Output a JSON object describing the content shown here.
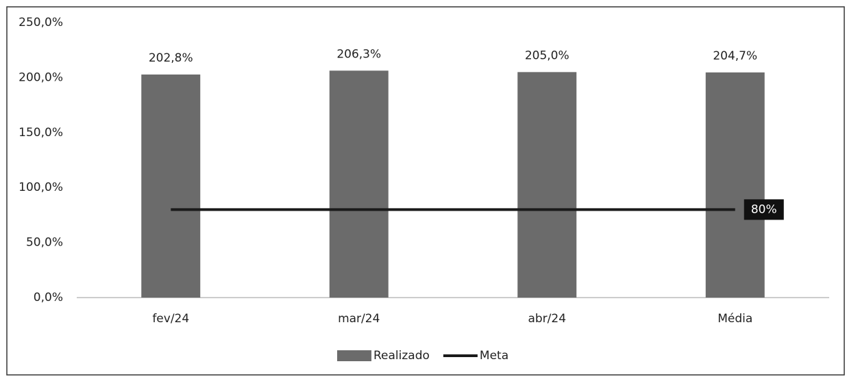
{
  "chart_data": {
    "type": "bar",
    "categories": [
      "fev/24",
      "mar/24",
      "abr/24",
      "Média"
    ],
    "series": [
      {
        "name": "Realizado",
        "type": "bar",
        "color": "#6b6b6b",
        "values": [
          202.8,
          206.3,
          205.0,
          204.7
        ],
        "value_labels": [
          "202,8%",
          "206,3%",
          "205,0%",
          "204,7%"
        ]
      },
      {
        "name": "Meta",
        "type": "line",
        "color": "#1a1a1a",
        "values": [
          80,
          80,
          80,
          80
        ],
        "value_labels": [
          null,
          null,
          null,
          "80%"
        ]
      }
    ],
    "ylim": [
      0,
      250
    ],
    "yticks": [
      {
        "value": 0,
        "label": "0,0%"
      },
      {
        "value": 50,
        "label": "50,0%"
      },
      {
        "value": 100,
        "label": "100,0%"
      },
      {
        "value": 150,
        "label": "150,0%"
      },
      {
        "value": 200,
        "label": "200,0%"
      },
      {
        "value": 250,
        "label": "250,0%"
      }
    ],
    "grid": false,
    "legend": "bottom"
  }
}
